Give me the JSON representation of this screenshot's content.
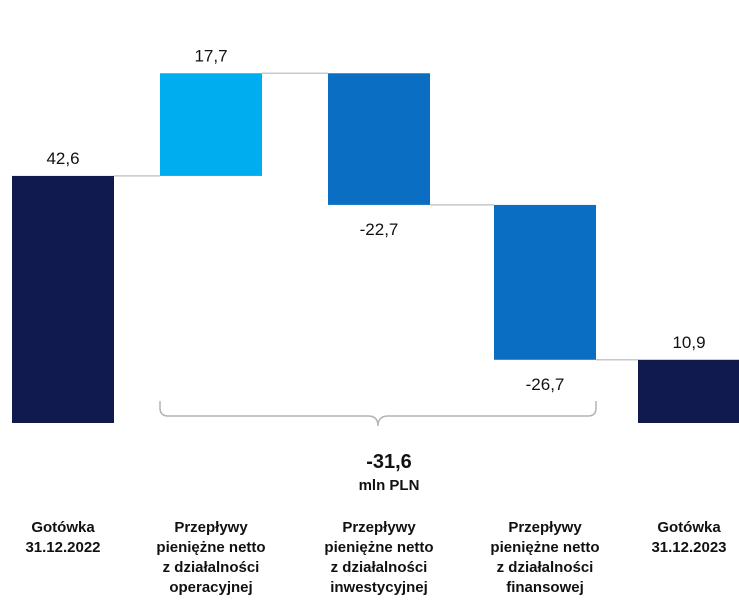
{
  "chart_data": {
    "type": "bar",
    "subtype": "waterfall",
    "categories": [
      [
        "Gotówka",
        "31.12.2022"
      ],
      [
        "Przepływy",
        "pieniężne netto",
        "z działalności",
        "operacyjnej"
      ],
      [
        "Przepływy",
        "pieniężne netto",
        "z działalności",
        "inwestycyjnej"
      ],
      [
        "Przepływy",
        "pieniężne netto",
        "z działalności",
        "finansowej"
      ],
      [
        "Gotówka",
        "31.12.2023"
      ]
    ],
    "values": [
      42.6,
      17.7,
      -22.7,
      -26.7,
      10.9
    ],
    "value_labels": [
      "42,6",
      "17,7",
      "-22,7",
      "-26,7",
      "10,9"
    ],
    "bar_kinds": [
      "total",
      "delta",
      "delta",
      "delta",
      "total"
    ],
    "colors": [
      "#111a4f",
      "#00adef",
      "#0a6fc2",
      "#0a6fc2",
      "#111a4f"
    ],
    "connector_color": "#c8c8c8",
    "bracket_color": "#b3b3b3",
    "ylim": [
      0,
      62
    ],
    "grid": false,
    "legend": "none",
    "bracket": {
      "from_category": 1,
      "to_category": 3,
      "value": "-31,6",
      "unit": "mln PLN"
    }
  }
}
